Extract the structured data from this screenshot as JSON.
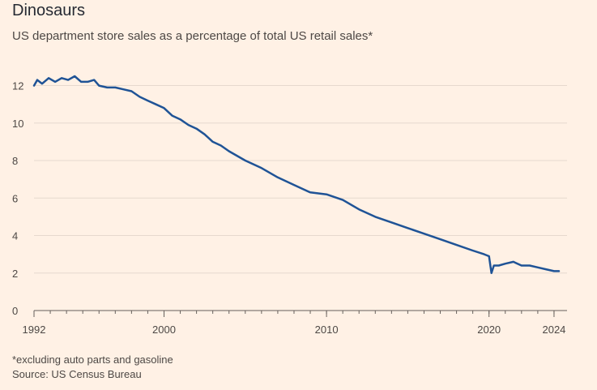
{
  "header": {
    "title": "Dinosaurs",
    "subtitle": "US department store sales as a percentage of total US retail sales*"
  },
  "footer": {
    "footnote": "*excluding auto parts and gasoline",
    "source": "Source: US Census Bureau"
  },
  "colors": {
    "background": "#fff1e5",
    "line": "#1f5396",
    "grid": "#e6d9ce",
    "axis": "#66605c"
  },
  "chart_data": {
    "type": "line",
    "title": "Dinosaurs",
    "subtitle": "US department store sales as a percentage of total US retail sales*",
    "xlabel": "",
    "ylabel": "",
    "xlim": [
      1992,
      2024.8
    ],
    "ylim": [
      0,
      12.5
    ],
    "yticks": [
      0,
      2,
      4,
      6,
      8,
      10,
      12
    ],
    "xtick_labels": [
      "1992",
      "2000",
      "2010",
      "2020",
      "2024"
    ],
    "xtick_values": [
      1992,
      2000,
      2010,
      2020,
      2024
    ],
    "grid": true,
    "series": [
      {
        "name": "",
        "x": [
          1992.0,
          1992.2,
          1992.5,
          1992.9,
          1993.3,
          1993.7,
          1994.1,
          1994.5,
          1994.9,
          1995.3,
          1995.7,
          1996.0,
          1996.5,
          1997.0,
          1997.5,
          1998.0,
          1998.5,
          1999.0,
          1999.5,
          2000.0,
          2000.5,
          2001.0,
          2001.5,
          2002.0,
          2002.5,
          2003.0,
          2003.5,
          2004.0,
          2005.0,
          2006.0,
          2007.0,
          2008.0,
          2009.0,
          2010.0,
          2011.0,
          2012.0,
          2013.0,
          2014.0,
          2015.0,
          2016.0,
          2017.0,
          2018.0,
          2019.0,
          2019.7,
          2020.0,
          2020.15,
          2020.3,
          2020.6,
          2021.0,
          2021.5,
          2022.0,
          2022.5,
          2023.0,
          2023.5,
          2024.0,
          2024.3
        ],
        "y": [
          12.0,
          12.3,
          12.1,
          12.4,
          12.2,
          12.4,
          12.3,
          12.5,
          12.2,
          12.2,
          12.3,
          12.0,
          11.9,
          11.9,
          11.8,
          11.7,
          11.4,
          11.2,
          11.0,
          10.8,
          10.4,
          10.2,
          9.9,
          9.7,
          9.4,
          9.0,
          8.8,
          8.5,
          8.0,
          7.6,
          7.1,
          6.7,
          6.3,
          6.2,
          5.9,
          5.4,
          5.0,
          4.7,
          4.4,
          4.1,
          3.8,
          3.5,
          3.2,
          3.0,
          2.9,
          2.0,
          2.4,
          2.4,
          2.5,
          2.6,
          2.4,
          2.4,
          2.3,
          2.2,
          2.1,
          2.1
        ]
      }
    ]
  }
}
